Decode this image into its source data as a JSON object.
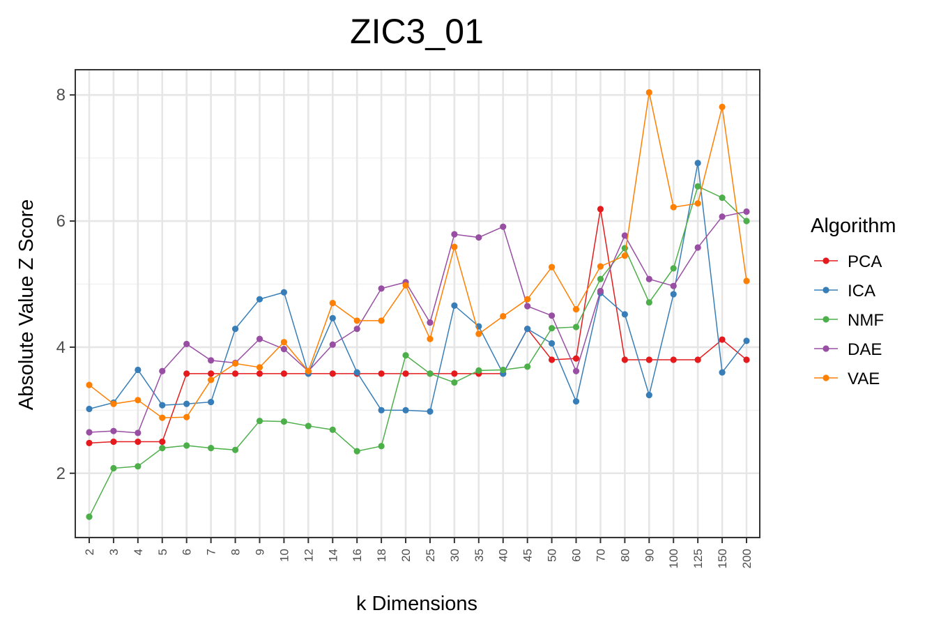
{
  "chart_data": {
    "type": "line",
    "title": "ZIC3_01",
    "xlabel": "k Dimensions",
    "ylabel": "Absolute Value Z Score",
    "categories": [
      "2",
      "3",
      "4",
      "5",
      "6",
      "7",
      "8",
      "9",
      "10",
      "12",
      "14",
      "16",
      "18",
      "20",
      "25",
      "30",
      "35",
      "40",
      "45",
      "50",
      "60",
      "70",
      "80",
      "90",
      "100",
      "125",
      "150",
      "200"
    ],
    "ylim": [
      0.98,
      8.4
    ],
    "yticks": [
      "2",
      "4",
      "6",
      "8"
    ],
    "grid": true,
    "legend": {
      "title": "Algorithm",
      "position": "right"
    },
    "series": [
      {
        "name": "PCA",
        "color": "#E41A1C",
        "values": [
          2.48,
          2.5,
          2.5,
          2.5,
          3.58,
          3.58,
          3.58,
          3.58,
          3.58,
          3.58,
          3.58,
          3.58,
          3.58,
          3.58,
          3.58,
          3.58,
          3.58,
          3.58,
          4.29,
          3.8,
          3.82,
          6.19,
          3.8,
          3.8,
          3.8,
          3.8,
          4.12,
          3.8
        ]
      },
      {
        "name": "ICA",
        "color": "#377EB8",
        "values": [
          3.02,
          3.12,
          3.64,
          3.08,
          3.1,
          3.13,
          4.29,
          4.76,
          4.87,
          3.58,
          4.46,
          3.6,
          3.0,
          3.0,
          2.98,
          4.66,
          4.33,
          3.58,
          4.29,
          4.06,
          3.14,
          4.86,
          4.52,
          3.24,
          4.84,
          6.92,
          3.6,
          4.1
        ]
      },
      {
        "name": "NMF",
        "color": "#4DAF4A",
        "values": [
          1.31,
          2.08,
          2.11,
          2.4,
          2.44,
          2.4,
          2.37,
          2.83,
          2.82,
          2.75,
          2.69,
          2.35,
          2.43,
          3.87,
          3.58,
          3.44,
          3.63,
          3.64,
          3.69,
          4.3,
          4.32,
          5.08,
          5.57,
          4.71,
          5.25,
          6.55,
          6.37,
          6.0
        ]
      },
      {
        "name": "DAE",
        "color": "#984EA3",
        "values": [
          2.65,
          2.67,
          2.64,
          3.62,
          4.05,
          3.79,
          3.75,
          4.13,
          3.97,
          3.62,
          4.04,
          4.29,
          4.93,
          5.03,
          4.39,
          5.79,
          5.74,
          5.91,
          4.65,
          4.5,
          3.62,
          4.89,
          5.77,
          5.08,
          4.97,
          5.58,
          6.07,
          6.15
        ]
      },
      {
        "name": "VAE",
        "color": "#FF7F00",
        "values": [
          3.4,
          3.1,
          3.16,
          2.88,
          2.89,
          3.48,
          3.74,
          3.68,
          4.08,
          3.62,
          4.7,
          4.42,
          4.42,
          4.98,
          4.13,
          5.59,
          4.21,
          4.49,
          4.76,
          5.27,
          4.6,
          5.28,
          5.45,
          8.04,
          6.22,
          6.28,
          7.81,
          5.05
        ]
      }
    ]
  }
}
